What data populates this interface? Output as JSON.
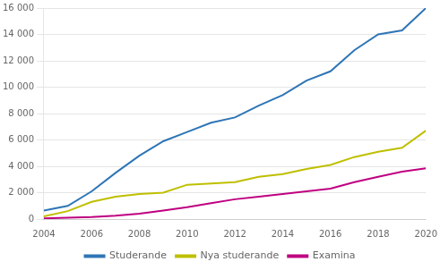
{
  "chart_data": {
    "type": "line",
    "x": [
      2004,
      2005,
      2006,
      2007,
      2008,
      2009,
      2010,
      2011,
      2012,
      2013,
      2014,
      2015,
      2016,
      2017,
      2018,
      2019,
      2020
    ],
    "series": [
      {
        "name": "Studerande",
        "color": "#2E75B6",
        "values": [
          650,
          1000,
          2100,
          3500,
          4800,
          5900,
          6600,
          7300,
          7700,
          8600,
          9400,
          10500,
          11200,
          12800,
          14000,
          14300,
          16000
        ]
      },
      {
        "name": "Nya studerande",
        "color": "#BFBF00",
        "values": [
          200,
          600,
          1300,
          1700,
          1900,
          2000,
          2600,
          2700,
          2800,
          3200,
          3400,
          3800,
          4100,
          4700,
          5100,
          5400,
          6700
        ]
      },
      {
        "name": "Examina",
        "color": "#BF0080",
        "values": [
          50,
          100,
          150,
          250,
          400,
          650,
          900,
          1200,
          1500,
          1700,
          1900,
          2100,
          2300,
          2800,
          3200,
          3600,
          3850
        ]
      }
    ],
    "xlim": [
      2004,
      2020
    ],
    "xticks": [
      2004,
      2006,
      2008,
      2010,
      2012,
      2014,
      2016,
      2018,
      2020
    ],
    "ylim": [
      0,
      16000
    ],
    "yticks": [
      0,
      {
        "value": 2000,
        "label": "2 000"
      },
      {
        "value": 4000,
        "label": "4 000"
      },
      {
        "value": 6000,
        "label": "6 000"
      },
      {
        "value": 8000,
        "label": "8 000"
      },
      {
        "value": 10000,
        "label": "10 000"
      },
      {
        "value": 12000,
        "label": "12 000"
      },
      {
        "value": 14000,
        "label": "14 000"
      },
      {
        "value": 16000,
        "label": "16 000"
      }
    ],
    "grid": "y",
    "legend": "bottom"
  }
}
